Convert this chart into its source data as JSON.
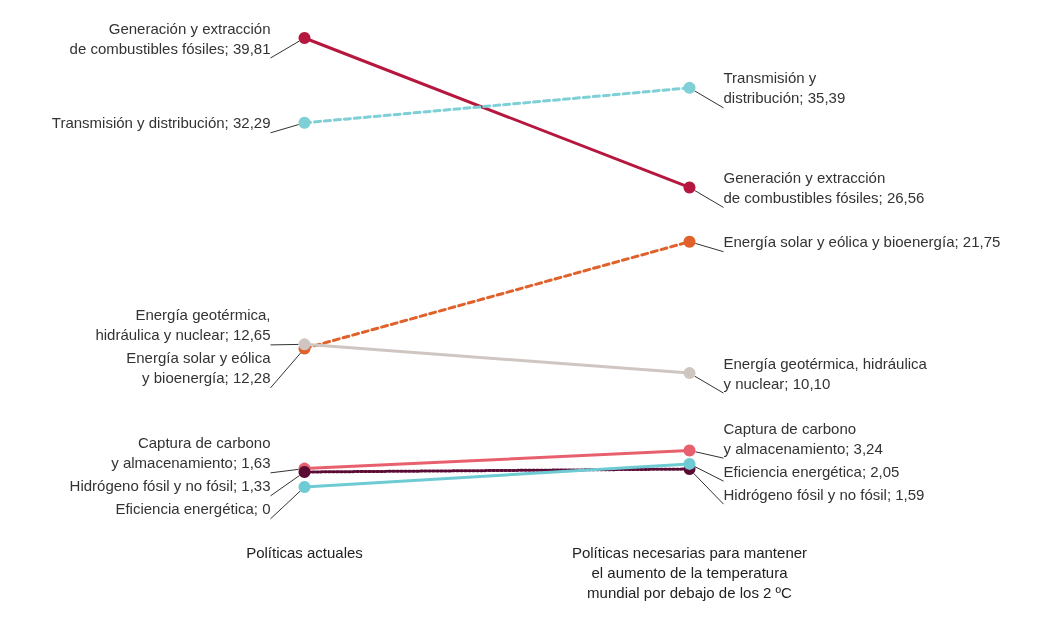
{
  "chart_data": {
    "type": "line",
    "categories": [
      "Políticas actuales",
      "Políticas necesarias para mantener\nel aumento de la temperatura\nmundial por debajo de los 2 ºC"
    ],
    "series": [
      {
        "color": "#b5173f",
        "values": [
          39.81,
          26.56
        ],
        "value_labels": [
          "Generación y extracción\nde combustibles fósiles; 39,81",
          "Generación y extracción\nde combustibles fósiles; 26,56"
        ],
        "line_style": "solid"
      },
      {
        "color": "#7ecfd6",
        "values": [
          32.29,
          35.39
        ],
        "value_labels": [
          "Transmisión y distribución; 32,29",
          "Transmisión y\ndistribución; 35,39"
        ],
        "line_style": "dashed"
      },
      {
        "color": "#e0622a",
        "values": [
          12.28,
          21.75
        ],
        "value_labels": [
          "Energía solar y eólica\ny bioenergía; 12,28",
          "Energía solar y eólica y bioenergía; 21,75"
        ],
        "line_style": "dashed"
      },
      {
        "color": "#cfc6c2",
        "values": [
          12.65,
          10.1
        ],
        "value_labels": [
          "Energía geotérmica,\nhidráulica y nuclear; 12,65",
          "Energía geotérmica, hidráulica\ny nuclear; 10,10"
        ],
        "line_style": "solid"
      },
      {
        "color": "#e8606e",
        "values": [
          1.63,
          3.24
        ],
        "value_labels": [
          "Captura de carbono\ny almacenamiento; 1,63",
          "Captura de carbono\ny almacenamiento; 3,24"
        ],
        "line_style": "solid"
      },
      {
        "color": "#5a0c35",
        "values": [
          1.33,
          1.59
        ],
        "value_labels": [
          "Hidrógeno fósil y no fósil; 1,33",
          "Hidrógeno fósil y no fósil; 1,59"
        ],
        "line_style": "dotted"
      },
      {
        "color": "#6fcbd3",
        "values": [
          0,
          2.05
        ],
        "value_labels": [
          "Eficiencia energética; 0",
          "Eficiencia energética; 2,05"
        ],
        "line_style": "solid"
      }
    ],
    "marker": "circle"
  }
}
